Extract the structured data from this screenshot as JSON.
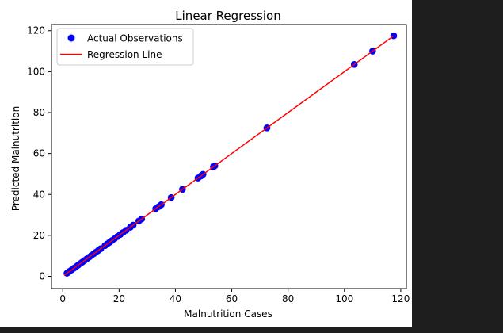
{
  "chart_data": {
    "type": "scatter",
    "title": "Linear Regression",
    "xlabel": "Malnutrition Cases",
    "ylabel": "Predicted Malnutrition",
    "xlim": [
      -4,
      122
    ],
    "ylim": [
      -6,
      123
    ],
    "xticks": [
      0,
      20,
      40,
      60,
      80,
      100,
      120
    ],
    "yticks": [
      0,
      20,
      40,
      60,
      80,
      100,
      120
    ],
    "grid": false,
    "legend_position": "upper-left",
    "series": [
      {
        "name": "Actual Observations",
        "kind": "scatter",
        "color": "#0000ff",
        "x": [
          1.5,
          2.5,
          3.2,
          4.0,
          4.8,
          5.5,
          6.3,
          7.0,
          7.8,
          8.6,
          9.4,
          10.2,
          11.0,
          11.8,
          12.6,
          13.5,
          15.0,
          15.8,
          16.6,
          17.5,
          18.4,
          19.4,
          20.4,
          21.4,
          22.5,
          24.0,
          25.0,
          27.0,
          28.0,
          33.0,
          34.0,
          35.0,
          38.5,
          42.5,
          48.0,
          49.0,
          49.8,
          53.5,
          54.0,
          72.5,
          103.5,
          110.0,
          117.5
        ],
        "y": [
          1.5,
          2.5,
          3.2,
          4.0,
          4.8,
          5.5,
          6.3,
          7.0,
          7.8,
          8.6,
          9.4,
          10.2,
          11.0,
          11.8,
          12.6,
          13.5,
          15.0,
          15.8,
          16.6,
          17.5,
          18.4,
          19.4,
          20.4,
          21.4,
          22.5,
          24.0,
          25.0,
          27.0,
          28.0,
          33.0,
          34.0,
          35.0,
          38.5,
          42.5,
          48.0,
          49.0,
          49.8,
          53.5,
          54.0,
          72.5,
          103.5,
          110.0,
          117.5
        ]
      },
      {
        "name": "Regression Line",
        "kind": "line",
        "color": "#ff0000",
        "x": [
          0.5,
          117.5
        ],
        "y": [
          0.5,
          117.5
        ]
      }
    ]
  }
}
